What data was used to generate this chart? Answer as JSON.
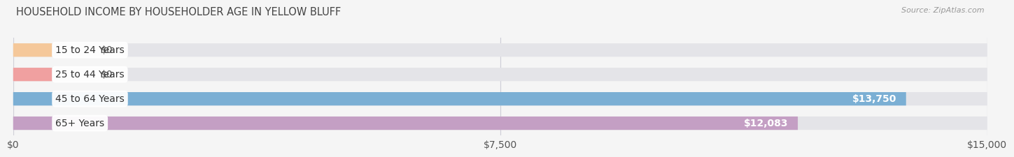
{
  "title": "HOUSEHOLD INCOME BY HOUSEHOLDER AGE IN YELLOW BLUFF",
  "source": "Source: ZipAtlas.com",
  "categories": [
    "15 to 24 Years",
    "25 to 44 Years",
    "45 to 64 Years",
    "65+ Years"
  ],
  "values": [
    0,
    0,
    13750,
    12083
  ],
  "bar_colors": [
    "#f5c89a",
    "#f0a0a0",
    "#7bafd4",
    "#c49fc4"
  ],
  "bg_color": "#f5f5f5",
  "bar_bg_color": "#e4e4e8",
  "xlim": [
    0,
    15000
  ],
  "xticks": [
    0,
    7500,
    15000
  ],
  "xticklabels": [
    "$0",
    "$7,500",
    "$15,000"
  ],
  "label_fontsize": 10,
  "title_fontsize": 10.5,
  "source_fontsize": 8,
  "value_label_color_bar": "#ffffff",
  "value_label_color_zero": "#555555",
  "grid_color": "#d0d0d8",
  "bar_height": 0.55,
  "bar_spacing": 1.0
}
